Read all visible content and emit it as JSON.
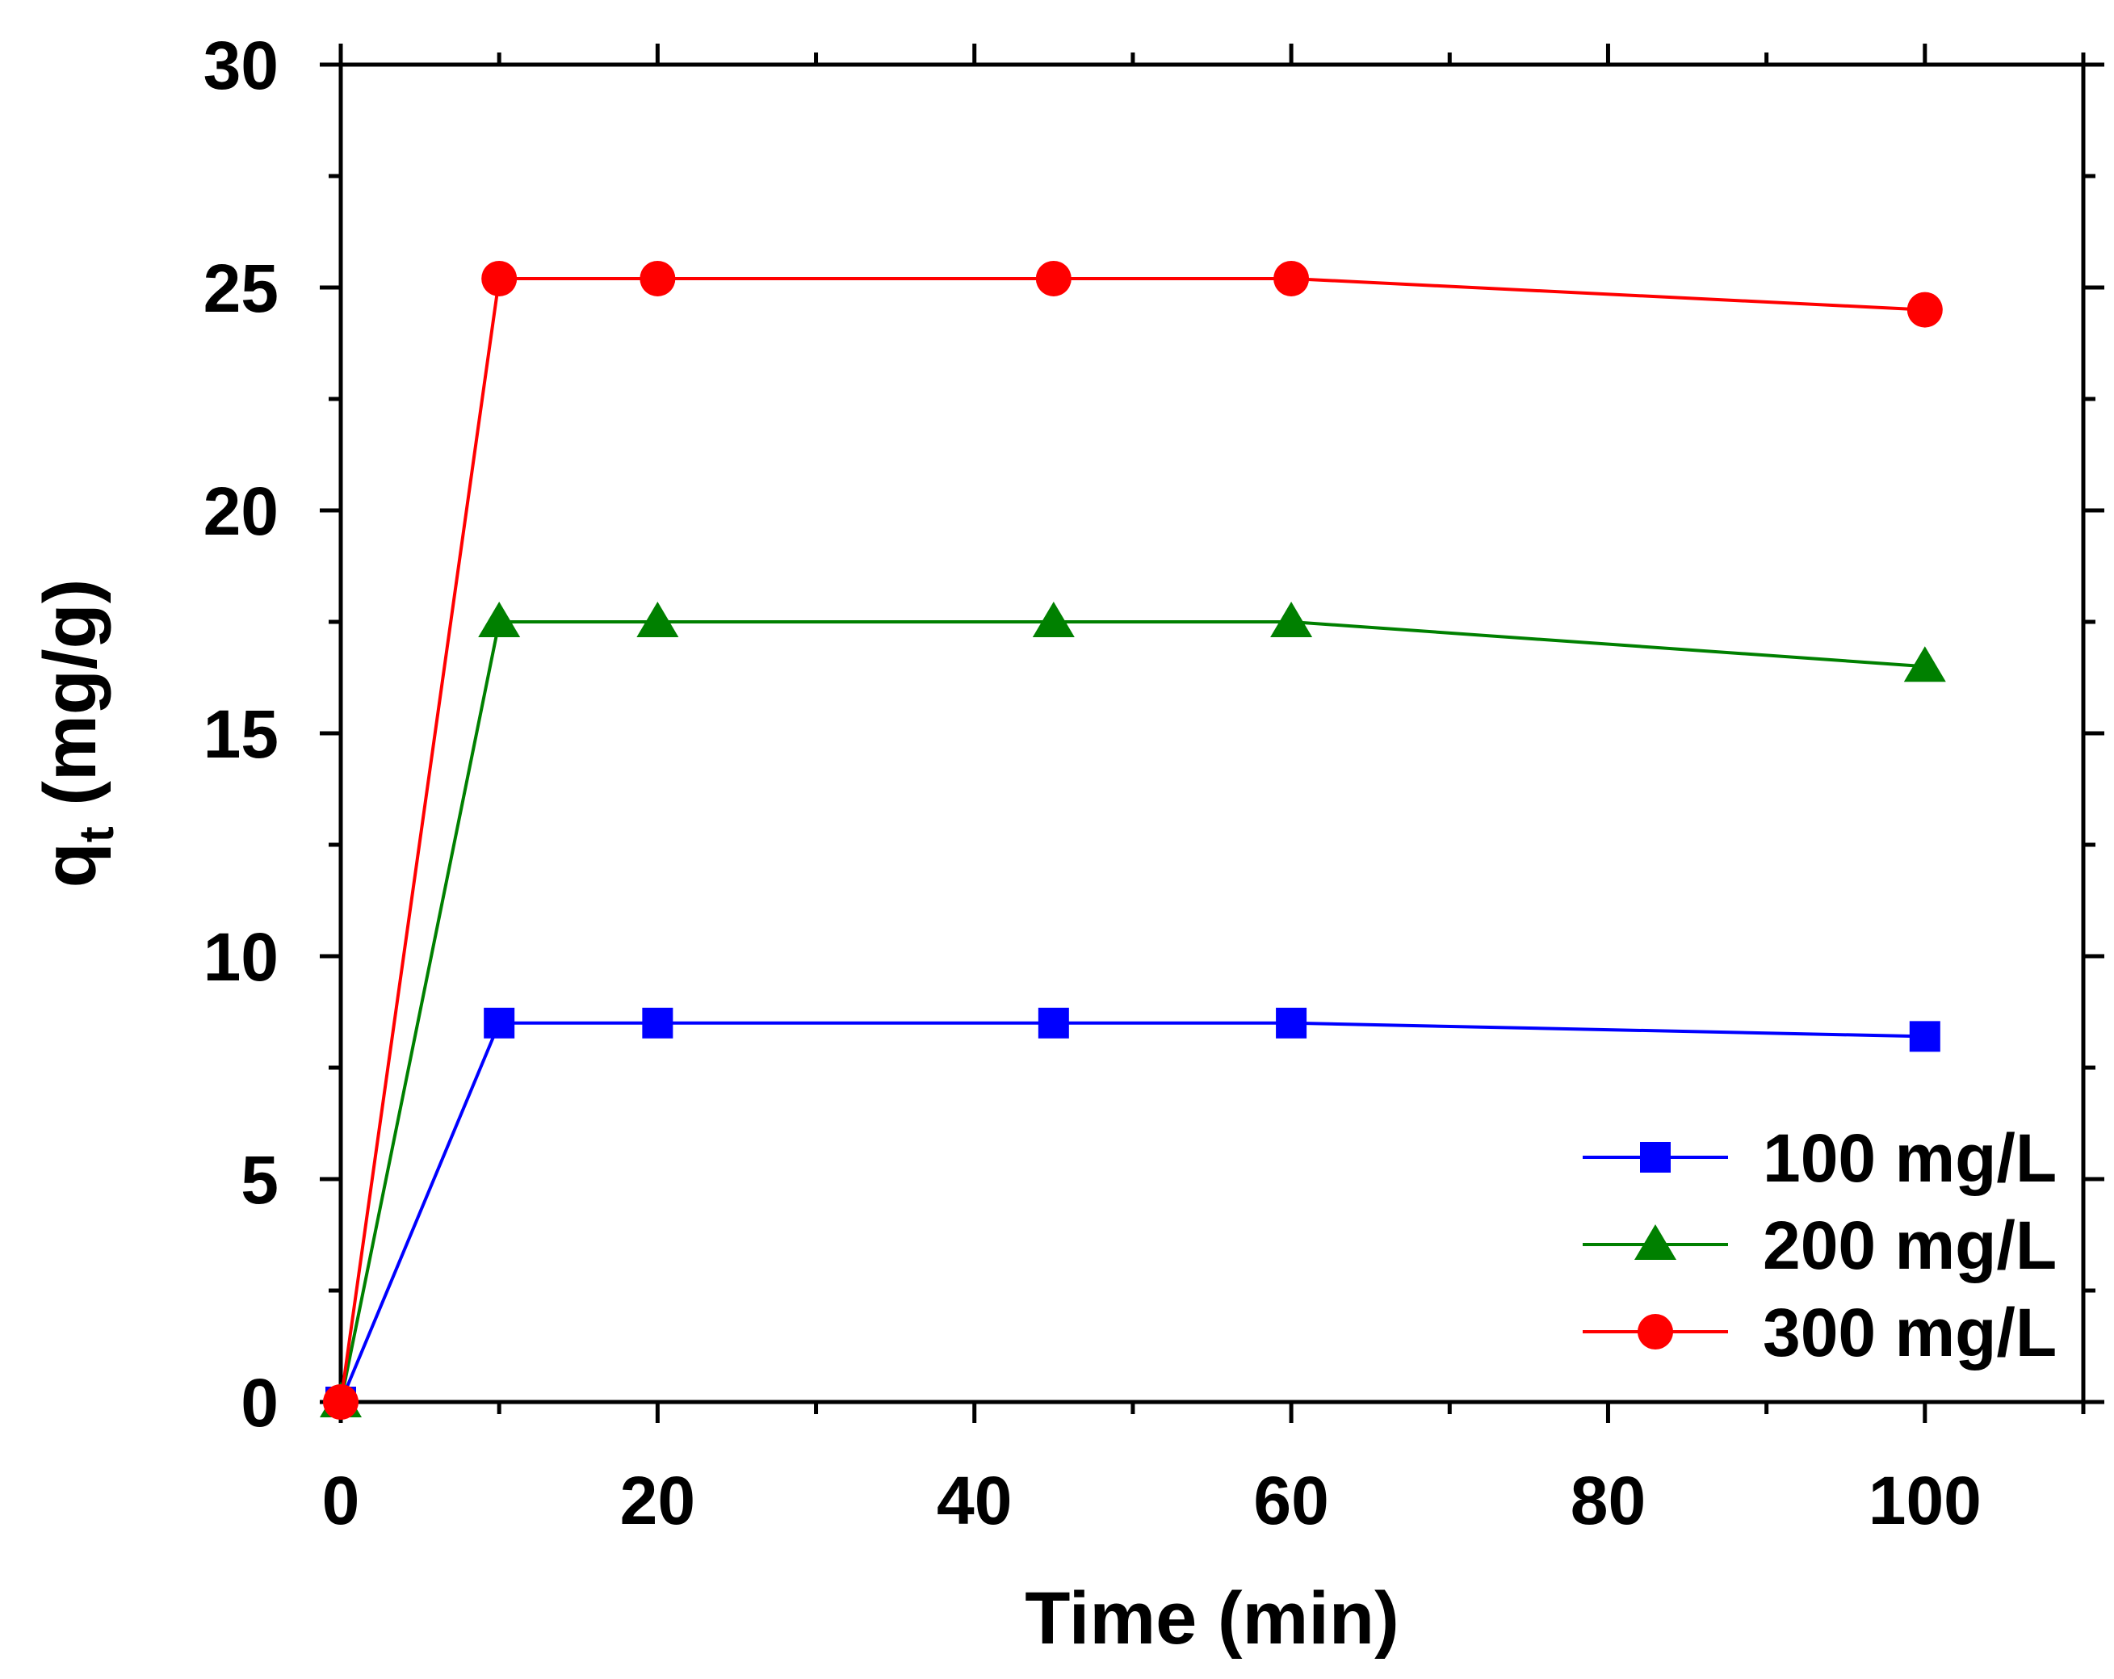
{
  "chart_data": {
    "type": "line",
    "title": "",
    "xlabel": "Time (min)",
    "ylabel": {
      "main": "q",
      "subscript": "t",
      "units": " (mg/g)"
    },
    "xlim": [
      0,
      110
    ],
    "ylim": [
      0,
      30
    ],
    "xticks": [
      0,
      20,
      40,
      60,
      80,
      100
    ],
    "xtick_labels": [
      "0",
      "20",
      "40",
      "60",
      "80",
      "100"
    ],
    "yticks": [
      0,
      5,
      10,
      15,
      20,
      25,
      30
    ],
    "ytick_labels": [
      "0",
      "5",
      "10",
      "15",
      "20",
      "25",
      "30"
    ],
    "grid": false,
    "legend_position": "bottom-right",
    "series": [
      {
        "name": "100 mg/L",
        "marker": "square",
        "color": "#0000ff",
        "x": [
          0,
          10,
          20,
          45,
          60,
          100
        ],
        "y": [
          0,
          8.5,
          8.5,
          8.5,
          8.5,
          8.2
        ]
      },
      {
        "name": "200 mg/L",
        "marker": "triangle",
        "color": "#008000",
        "x": [
          0,
          10,
          20,
          45,
          60,
          100
        ],
        "y": [
          0,
          17.5,
          17.5,
          17.5,
          17.5,
          16.5
        ]
      },
      {
        "name": "300 mg/L",
        "marker": "circle",
        "color": "#ff0000",
        "x": [
          0,
          10,
          20,
          45,
          60,
          100
        ],
        "y": [
          0,
          25.2,
          25.2,
          25.2,
          25.2,
          24.5
        ]
      }
    ]
  }
}
